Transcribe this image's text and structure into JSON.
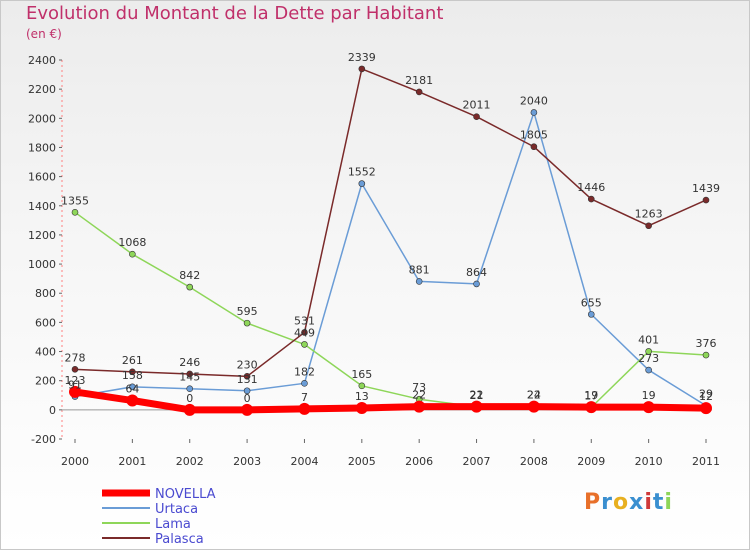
{
  "header": {
    "title": "Evolution du Montant de la Dette par Habitant",
    "subtitle": "(en €)"
  },
  "logo": {
    "text": "Proxiti"
  },
  "chart_data": {
    "type": "line",
    "title": "Evolution du Montant de la Dette par Habitant",
    "subtitle": "(en €)",
    "x": [
      "2000",
      "2001",
      "2002",
      "2003",
      "2004",
      "2005",
      "2006",
      "2007",
      "2008",
      "2009",
      "2010",
      "2011"
    ],
    "ylim": [
      -200,
      2400
    ],
    "yticks": [
      -200,
      0,
      200,
      400,
      600,
      800,
      1000,
      1200,
      1400,
      1600,
      1800,
      2000,
      2200,
      2400
    ],
    "grid": false,
    "legend_position": "bottom-left",
    "series": [
      {
        "name": "NOVELLA",
        "color": "#ff0000",
        "values": [
          123,
          64,
          0,
          0,
          7,
          13,
          22,
          22,
          22,
          19,
          19,
          12
        ]
      },
      {
        "name": "Urtaca",
        "color": "#6a9cd6",
        "values": [
          91,
          158,
          145,
          131,
          182,
          1552,
          881,
          864,
          2040,
          655,
          273,
          29
        ]
      },
      {
        "name": "Lama",
        "color": "#8ed659",
        "values": [
          1355,
          1068,
          842,
          595,
          449,
          165,
          73,
          21,
          24,
          17,
          401,
          376
        ]
      },
      {
        "name": "Palasca",
        "color": "#7a2a2a",
        "values": [
          278,
          261,
          246,
          230,
          531,
          2339,
          2181,
          2011,
          1805,
          1446,
          1263,
          1439
        ]
      }
    ]
  }
}
